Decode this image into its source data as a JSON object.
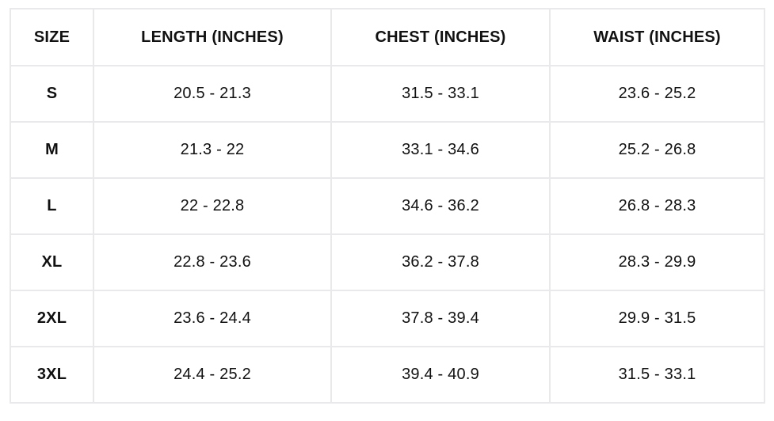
{
  "chart_data": {
    "type": "table",
    "columns": [
      "SIZE",
      "LENGTH (INCHES)",
      "CHEST (INCHES)",
      "WAIST (INCHES)"
    ],
    "rows": [
      [
        "S",
        "20.5 - 21.3",
        "31.5 - 33.1",
        "23.6 - 25.2"
      ],
      [
        "M",
        "21.3 - 22",
        "33.1 - 34.6",
        "25.2 - 26.8"
      ],
      [
        "L",
        "22 - 22.8",
        "34.6 - 36.2",
        "26.8 - 28.3"
      ],
      [
        "XL",
        "22.8 - 23.6",
        "36.2 - 37.8",
        "28.3 - 29.9"
      ],
      [
        "2XL",
        "23.6 - 24.4",
        "37.8 - 39.4",
        "29.9 - 31.5"
      ],
      [
        "3XL",
        "24.4 - 25.2",
        "39.4 - 40.9",
        "31.5 - 33.1"
      ]
    ],
    "layout": {
      "grid": "on",
      "header_style": "bold",
      "first_column_style": "bold"
    }
  },
  "colors": {
    "border": "#e9e9eb",
    "text": "#111111",
    "background": "#ffffff"
  }
}
